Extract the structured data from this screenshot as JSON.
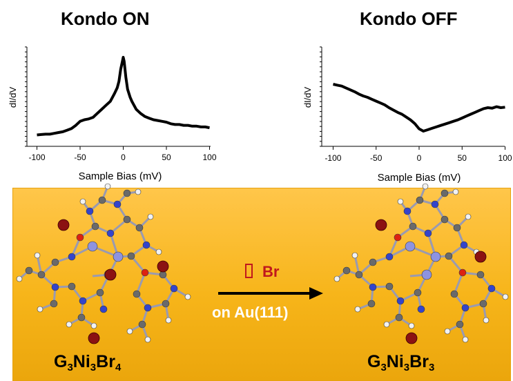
{
  "panels": {
    "left_title": "Kondo ON",
    "right_title": "Kondo OFF"
  },
  "chart_data": [
    {
      "type": "line",
      "title": "Kondo ON",
      "xlabel": "Sample Bias (mV)",
      "ylabel": "dI/dV",
      "xlim": [
        -110,
        110
      ],
      "x_ticks": [
        -100,
        -50,
        0,
        50,
        100
      ],
      "x_tick_labels": [
        "-100",
        "-50",
        "0",
        "50",
        "100"
      ],
      "y_ticks_labeled": false,
      "grid": false,
      "series": [
        {
          "x": [
            -100,
            -95,
            -90,
            -85,
            -80,
            -75,
            -70,
            -65,
            -60,
            -55,
            -50,
            -45,
            -40,
            -35,
            -30,
            -25,
            -20,
            -15,
            -10,
            -7,
            -5,
            -3,
            -1,
            0,
            1,
            3,
            5,
            8,
            10,
            15,
            20,
            25,
            30,
            35,
            40,
            45,
            50,
            55,
            60,
            65,
            70,
            75,
            80,
            85,
            90,
            95,
            100
          ],
          "y": [
            0.03,
            0.035,
            0.04,
            0.04,
            0.05,
            0.06,
            0.07,
            0.09,
            0.11,
            0.15,
            0.2,
            0.22,
            0.23,
            0.25,
            0.3,
            0.35,
            0.4,
            0.45,
            0.55,
            0.62,
            0.7,
            0.85,
            0.95,
            1.0,
            0.95,
            0.75,
            0.6,
            0.5,
            0.45,
            0.35,
            0.3,
            0.26,
            0.24,
            0.22,
            0.21,
            0.2,
            0.19,
            0.17,
            0.16,
            0.16,
            0.15,
            0.15,
            0.14,
            0.14,
            0.13,
            0.13,
            0.12
          ]
        }
      ]
    },
    {
      "type": "line",
      "title": "Kondo OFF",
      "xlabel": "Sample Bias (mV)",
      "ylabel": "dI/dV",
      "xlim": [
        -110,
        110
      ],
      "x_ticks": [
        -100,
        -50,
        0,
        50,
        100
      ],
      "x_tick_labels": [
        "-100",
        "-50",
        "0",
        "50",
        "100"
      ],
      "y_ticks_labeled": false,
      "grid": false,
      "series": [
        {
          "x": [
            -100,
            -95,
            -90,
            -85,
            -80,
            -75,
            -70,
            -65,
            -60,
            -55,
            -50,
            -45,
            -40,
            -35,
            -30,
            -25,
            -20,
            -15,
            -10,
            -5,
            0,
            5,
            10,
            15,
            20,
            25,
            30,
            35,
            40,
            45,
            50,
            55,
            60,
            65,
            70,
            75,
            80,
            85,
            90,
            95,
            100
          ],
          "y": [
            1.0,
            0.98,
            0.96,
            0.92,
            0.88,
            0.84,
            0.79,
            0.75,
            0.72,
            0.68,
            0.64,
            0.6,
            0.56,
            0.5,
            0.45,
            0.4,
            0.36,
            0.3,
            0.24,
            0.16,
            0.05,
            0.0,
            0.03,
            0.06,
            0.09,
            0.12,
            0.15,
            0.18,
            0.21,
            0.24,
            0.28,
            0.32,
            0.36,
            0.4,
            0.44,
            0.48,
            0.5,
            0.49,
            0.52,
            0.5,
            0.51
          ]
        }
      ]
    }
  ],
  "scheme": {
    "reaction_top": "Br",
    "reaction_bottom": "on Au(111)",
    "left_formula": {
      "G": "G",
      "G_sub": "3",
      "Ni": "Ni",
      "Ni_sub": "3",
      "Br": "Br",
      "Br_sub": "4"
    },
    "right_formula": {
      "G": "G",
      "G_sub": "3",
      "Ni": "Ni",
      "Ni_sub": "3",
      "Br": "Br",
      "Br_sub": "3"
    }
  },
  "colors": {
    "background_gradient_top": "#ffc64a",
    "background_gradient_bottom": "#eba60c",
    "reaction_text": "#c0181d",
    "nitrogen": "#3344cc",
    "carbon": "#6a6a6a",
    "hydrogen": "#f2f2f2",
    "oxygen": "#dd2211",
    "nickel": "#8d93e0",
    "bromine": "#8b1212"
  }
}
